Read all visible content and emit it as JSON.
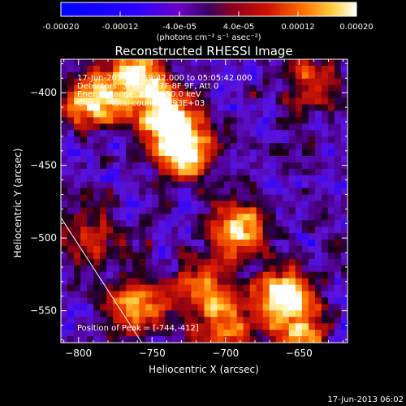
{
  "colorbar": {
    "ticks": [
      "-0.00020",
      "-0.00012",
      "-4.0e-05",
      "4.0e-05",
      "0.00012",
      "0.00020"
    ],
    "units": "(photons cm⁻² s⁻¹ asec⁻²)",
    "range": [
      -0.0002,
      0.0002
    ]
  },
  "chart_data": {
    "type": "heatmap",
    "title": "Reconstructed RHESSI Image",
    "xlabel": "Heliocentric X (arcsec)",
    "ylabel": "Heliocentric Y (arcsec)",
    "xlim": [
      -812,
      -617
    ],
    "ylim": [
      -572,
      -377
    ],
    "x_ticks": [
      -800,
      -750,
      -700,
      -650
    ],
    "y_ticks": [
      -400,
      -450,
      -500,
      -550
    ],
    "info_lines": [
      "17-Jun-2013 04:59:42.000 to 05:05:42.000",
      "Detectors: 3F 5F 6F 7F 8F 9F, Att 0",
      "Energy Range: 25.0 - 50.0 keV",
      "Clean    Total counts: 8.93E+03"
    ],
    "peak_label": "Position of Peak = [-744,-412]",
    "peak": [
      -744,
      -412
    ],
    "limb_line": [
      [
        -812,
        -486
      ],
      [
        -757,
        -572
      ]
    ],
    "bright_sources": [
      {
        "x": -740,
        "y": -415,
        "intensity": 1.0
      },
      {
        "x": -728,
        "y": -440,
        "intensity": 0.9
      },
      {
        "x": -790,
        "y": -405,
        "intensity": 0.75
      },
      {
        "x": -760,
        "y": -388,
        "intensity": 0.7
      },
      {
        "x": -690,
        "y": -495,
        "intensity": 0.75
      },
      {
        "x": -660,
        "y": -540,
        "intensity": 0.85
      },
      {
        "x": -760,
        "y": -545,
        "intensity": 0.7
      },
      {
        "x": -715,
        "y": -535,
        "intensity": 0.55
      },
      {
        "x": -790,
        "y": -500,
        "intensity": 0.45
      },
      {
        "x": -640,
        "y": -395,
        "intensity": 0.45
      },
      {
        "x": -700,
        "y": -560,
        "intensity": 0.5
      },
      {
        "x": -650,
        "y": -570,
        "intensity": 0.6
      }
    ]
  },
  "footer": {
    "timestamp": "17-Jun-2013 06:02"
  }
}
